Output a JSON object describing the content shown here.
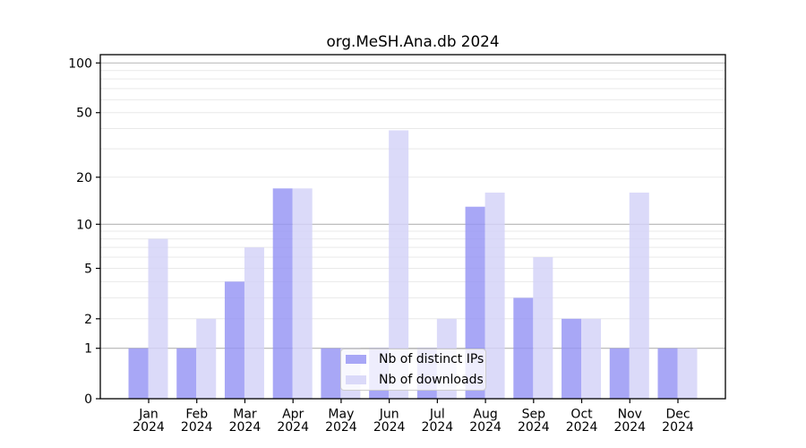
{
  "title": "org.MeSH.Ana.db 2024",
  "chart_data": {
    "type": "bar",
    "title": "org.MeSH.Ana.db 2024",
    "year": "2024",
    "categories": [
      "Jan",
      "Feb",
      "Mar",
      "Apr",
      "May",
      "Jun",
      "Jul",
      "Aug",
      "Sep",
      "Oct",
      "Nov",
      "Dec"
    ],
    "series": [
      {
        "name": "Nb of distinct IPs",
        "color": "#9594f4",
        "values": [
          1,
          1,
          4,
          17,
          1,
          1,
          1,
          13,
          3,
          2,
          1,
          1
        ]
      },
      {
        "name": "Nb of downloads",
        "color": "#d3d2f8",
        "values": [
          8,
          2,
          7,
          17,
          1,
          39,
          2,
          16,
          6,
          2,
          16,
          1
        ]
      }
    ],
    "yscale": "log1p",
    "ylim": [
      0,
      110
    ],
    "ytick_labels": [
      "100",
      "50",
      "20",
      "10",
      "5",
      "2",
      "1",
      "0"
    ],
    "ytick_values": [
      100,
      50,
      20,
      10,
      5,
      2,
      1,
      0
    ],
    "major_grid_values": [
      1,
      10,
      100
    ],
    "minor_grid_values": [
      2,
      3,
      4,
      5,
      6,
      7,
      8,
      9,
      20,
      30,
      40,
      50,
      60,
      70,
      80,
      90
    ],
    "grid": true,
    "legend_position": "lower center",
    "xlabel": "",
    "ylabel": ""
  },
  "colors": {
    "bar_ips": "#9594f4",
    "bar_downloads": "#d3d2f8",
    "bar_opacity": 0.82,
    "grid_major": "#b5b5b5",
    "grid_minor": "#e9e9e9",
    "spine": "#000000",
    "legend_border": "#cccccc",
    "text": "#000000",
    "background": "#ffffff"
  },
  "legend": {
    "items": [
      {
        "label": "Nb of distinct IPs"
      },
      {
        "label": "Nb of downloads"
      }
    ]
  }
}
